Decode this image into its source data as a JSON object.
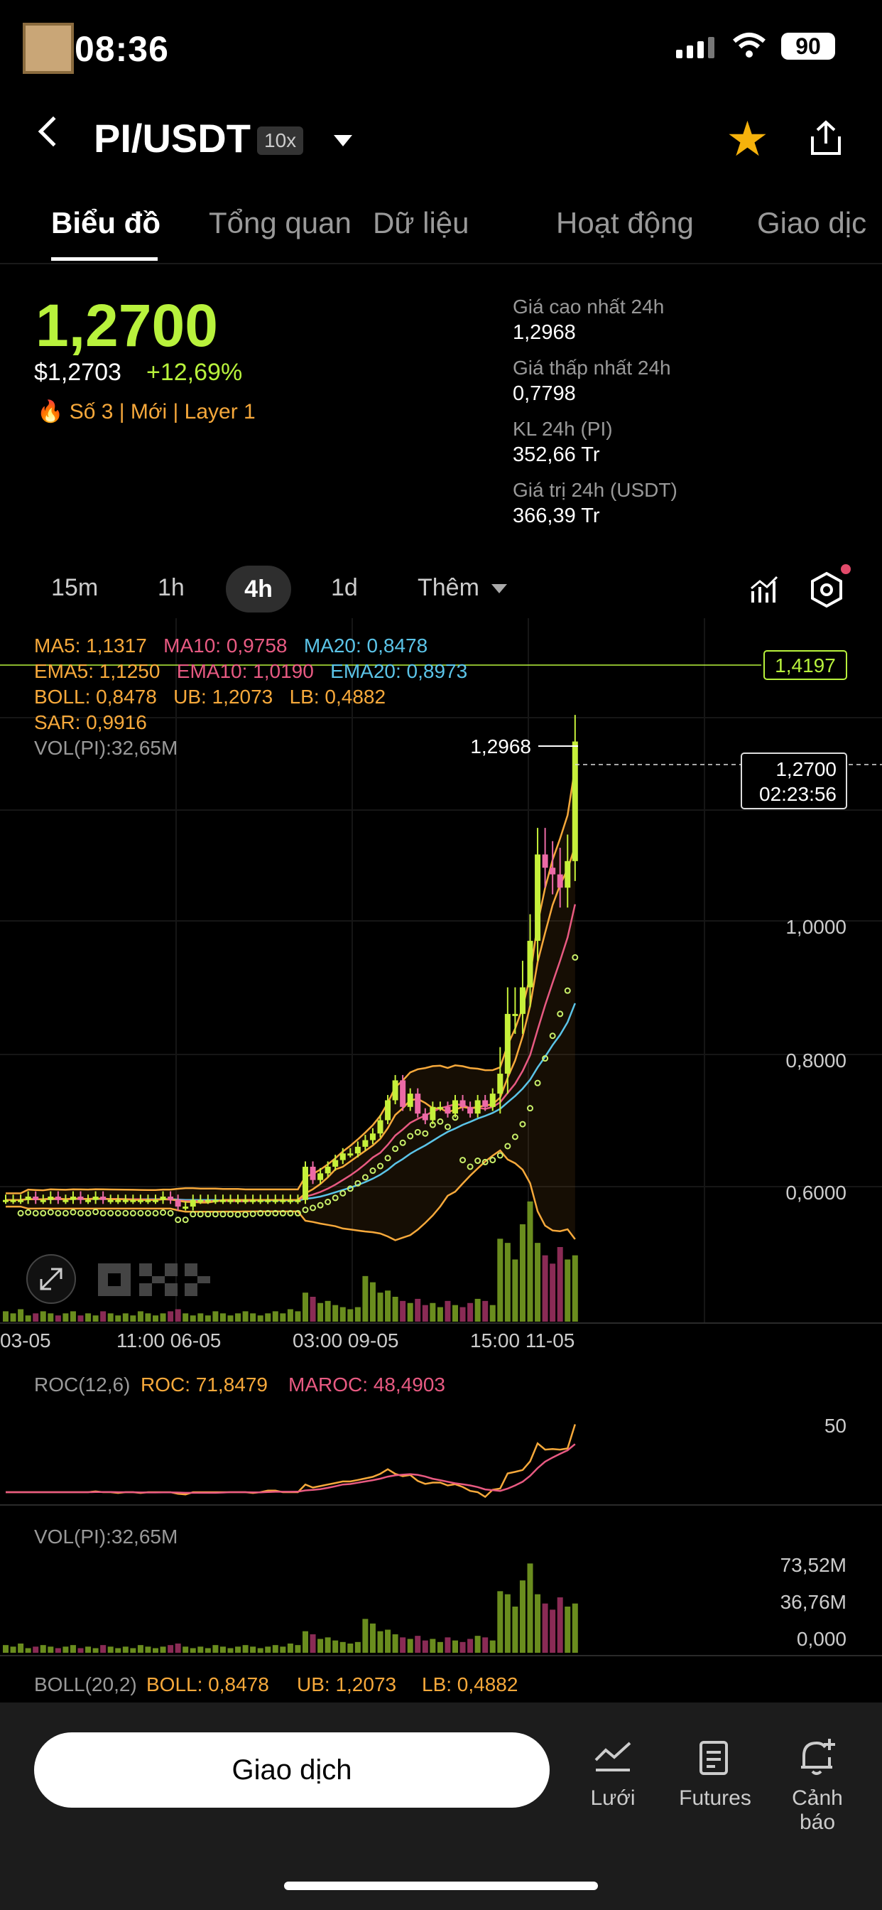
{
  "status_bar": {
    "time": "08:36",
    "battery": "90"
  },
  "header": {
    "pair": "PI/USDT",
    "leverage": "10x"
  },
  "tabs": [
    {
      "label": "Biểu đồ",
      "active": true
    },
    {
      "label": "Tổng quan"
    },
    {
      "label": "Dữ liệu"
    },
    {
      "label": "Hoạt động"
    },
    {
      "label": "Giao dịc"
    }
  ],
  "price": {
    "last": "1,2700",
    "usd": "$1,2703",
    "change": "+12,69%",
    "tags": "🔥 Số 3  |  Mới  |  Layer 1"
  },
  "stats": [
    {
      "label": "Giá cao nhất 24h",
      "value": "1,2968"
    },
    {
      "label": "Giá thấp nhất 24h",
      "value": "0,7798"
    },
    {
      "label": "KL 24h (PI)",
      "value": "352,66 Tr"
    },
    {
      "label": "Giá trị 24h (USDT)",
      "value": "366,39 Tr"
    }
  ],
  "intervals": [
    "15m",
    "1h",
    "4h",
    "1d",
    "Thêm"
  ],
  "legend": {
    "ma5": "MA5: 1,1317",
    "ma10": "MA10: 0,9758",
    "ma20": "MA20: 0,8478",
    "ema5": "EMA5: 1,1250",
    "ema10": "EMA10: 1,0190",
    "ema20": "EMA20: 0,8973",
    "boll": "BOLL: 0,8478",
    "ub": "UB: 1,2073",
    "lb": "LB: 0,4882",
    "sar": "SAR: 0,9916",
    "vol": "VOL(PI):32,65M"
  },
  "chart": {
    "high_label": "1,2968",
    "current_price": "1,2700",
    "countdown": "02:23:56",
    "ref_line": "1,4197",
    "y_ticks": [
      "1,0000",
      "0,8000",
      "0,6000"
    ],
    "x_ticks": [
      "03-05",
      "11:00 06-05",
      "03:00 09-05",
      "15:00 11-05"
    ],
    "roc_label": "ROC(12,6)",
    "roc": "ROC: 71,8479",
    "maroc": "MAROC: 48,4903",
    "roc_tick": "50",
    "vol_label": "VOL(PI):32,65M",
    "vol_ticks": [
      "73,52M",
      "36,76M",
      "0,000"
    ],
    "boll_label": "BOLL(20,2)",
    "boll": "BOLL: 0,8478",
    "ub": "UB: 1,2073",
    "lb": "LB: 0,4882"
  },
  "chart_data": {
    "type": "candlestick",
    "x_ticks": [
      "03-05",
      "11:00 06-05",
      "03:00 09-05",
      "15:00 11-05"
    ],
    "ylim": [
      0.5,
      1.35
    ],
    "closes": [
      0.58,
      0.58,
      0.58,
      0.585,
      0.58,
      0.58,
      0.585,
      0.58,
      0.58,
      0.585,
      0.58,
      0.58,
      0.585,
      0.58,
      0.58,
      0.58,
      0.58,
      0.58,
      0.58,
      0.58,
      0.58,
      0.585,
      0.58,
      0.57,
      0.57,
      0.58,
      0.58,
      0.58,
      0.58,
      0.58,
      0.58,
      0.58,
      0.58,
      0.58,
      0.58,
      0.58,
      0.58,
      0.58,
      0.58,
      0.58,
      0.63,
      0.61,
      0.62,
      0.63,
      0.64,
      0.65,
      0.65,
      0.66,
      0.67,
      0.68,
      0.7,
      0.73,
      0.76,
      0.72,
      0.74,
      0.71,
      0.7,
      0.72,
      0.72,
      0.71,
      0.73,
      0.72,
      0.71,
      0.73,
      0.72,
      0.74,
      0.77,
      0.86,
      0.86,
      0.9,
      0.97,
      1.1,
      1.08,
      1.07,
      1.05,
      1.09,
      1.27
    ],
    "volumes": [
      5,
      4,
      6,
      3,
      4,
      5,
      4,
      3,
      4,
      5,
      3,
      4,
      3,
      5,
      4,
      3,
      4,
      3,
      5,
      4,
      3,
      4,
      5,
      6,
      4,
      3,
      4,
      3,
      5,
      4,
      3,
      4,
      5,
      4,
      3,
      4,
      5,
      4,
      6,
      5,
      14,
      12,
      9,
      10,
      8,
      7,
      6,
      7,
      22,
      19,
      14,
      15,
      12,
      10,
      9,
      11,
      8,
      9,
      7,
      10,
      8,
      7,
      9,
      11,
      10,
      8,
      40,
      38,
      30,
      47,
      58,
      38,
      32,
      28,
      36,
      30,
      32
    ],
    "current_price": 1.27,
    "high_24h": 1.2968
  }
}
